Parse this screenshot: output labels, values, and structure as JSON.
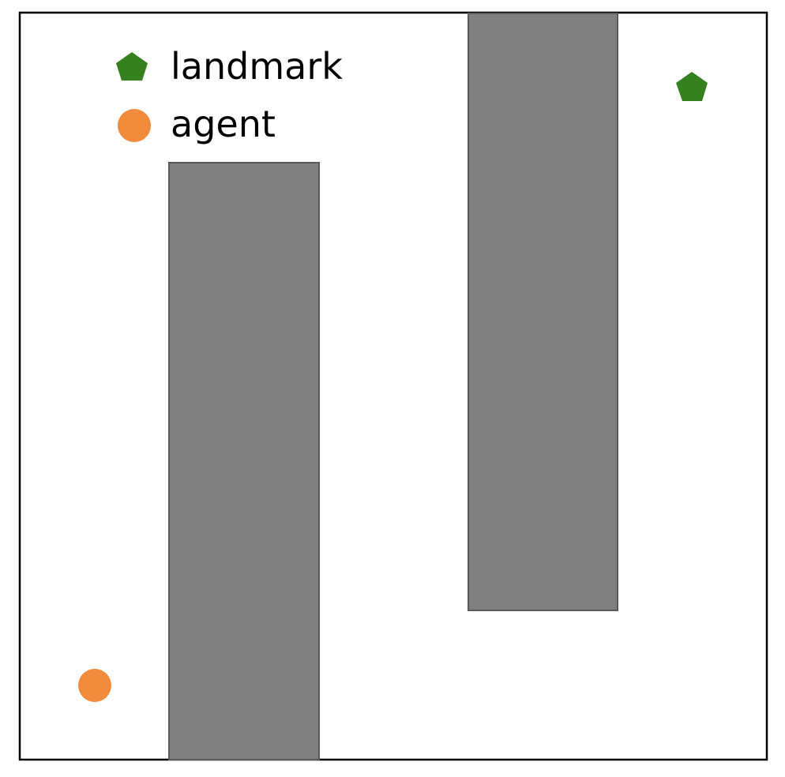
{
  "environment": {
    "background_color": "#ffffff",
    "border_color": "#000000",
    "obstacle_color": "#808080",
    "obstacle_edge_color": "#5a5a5a"
  },
  "legend": {
    "items": [
      {
        "label": "landmark",
        "marker": "pentagon-icon",
        "color": "#35801f"
      },
      {
        "label": "agent",
        "marker": "circle-icon",
        "color": "#f28a3c"
      }
    ]
  },
  "obstacles": [
    {
      "name": "left-wall"
    },
    {
      "name": "right-wall"
    }
  ],
  "landmark": {
    "color": "#35801f",
    "marker": "pentagon-icon"
  },
  "agent": {
    "color": "#f28a3c",
    "marker": "circle-icon"
  }
}
